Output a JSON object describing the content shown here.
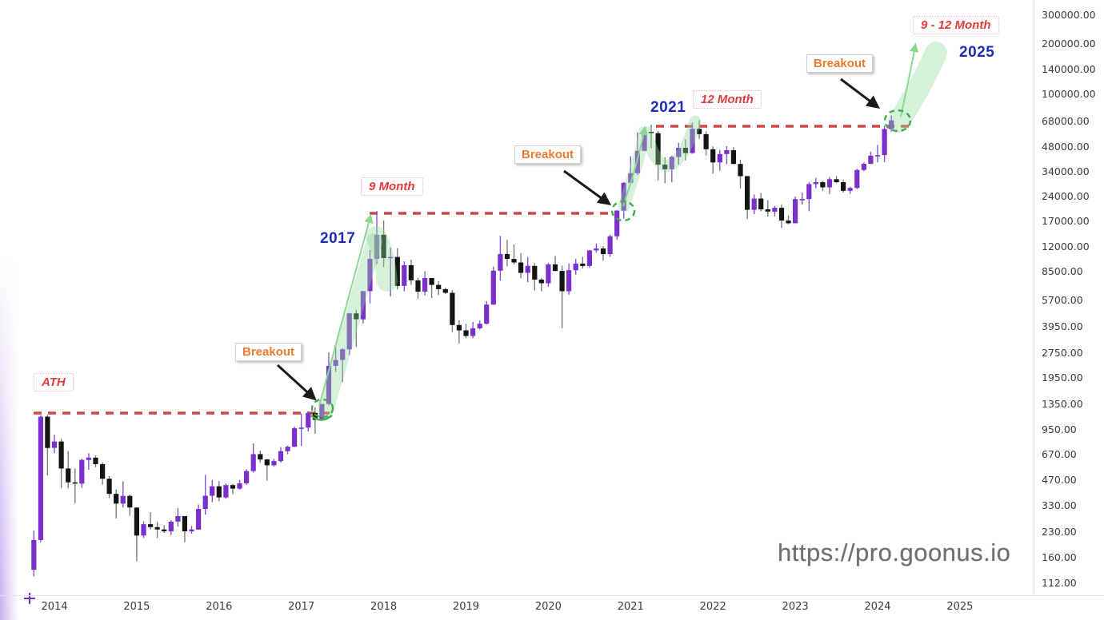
{
  "chart": {
    "watermark": "https://pro.goonus.io",
    "labels": {
      "ath": "ATH",
      "breakout_2017": "Breakout",
      "cycle_2017_duration": "9 Month",
      "year_2017": "2017",
      "breakout_2020": "Breakout",
      "cycle_2021_duration": "12 Month",
      "year_2021": "2021",
      "breakout_2024": "Breakout",
      "cycle_2025_duration": "9 - 12 Month",
      "year_2025": "2025"
    }
  },
  "x_axis": {
    "labels": [
      "2014",
      "2015",
      "2016",
      "2017",
      "2018",
      "2019",
      "2020",
      "2021",
      "2022",
      "2023",
      "2024",
      "2025"
    ]
  },
  "y_axis": {
    "labels": [
      "300000.00",
      "200000.00",
      "140000.00",
      "100000.00",
      "68000.00",
      "48000.00",
      "34000.00",
      "24000.00",
      "17000.00",
      "12000.00",
      "8500.00",
      "5700.00",
      "3950.00",
      "2750.00",
      "1950.00",
      "1350.00",
      "950.00",
      "670.00",
      "470.00",
      "330.00",
      "230.00",
      "160.00",
      "112.00"
    ]
  },
  "colors": {
    "up": "#7b2fcb",
    "down": "#141414",
    "up_wick": "#8a55d2",
    "down_wick": "#7d7d7d",
    "red_annotation": "#cf4646",
    "orange_label": "#ed7a2f",
    "blue_year": "#1f2cba",
    "green_circle": "#3fae4f",
    "green_arrow": "#8ad792",
    "green_band": "rgba(144,218,152,0.38)",
    "axis_text": "#3b3b3b",
    "watermark_gray": "#6f6f6f"
  },
  "chart_data": {
    "type": "candlestick",
    "scale": "logarithmic",
    "x_unit": "month",
    "y_range": [
      112,
      300000
    ],
    "x_range": [
      "2013-10",
      "2025-12"
    ],
    "resistance_lines": [
      {
        "price_level": 1150,
        "span": [
          "2013-11",
          "2017-04"
        ]
      },
      {
        "price_level": 19600,
        "span": [
          "2017-12",
          "2020-12"
        ]
      },
      {
        "price_level": 68500,
        "span": [
          "2021-04",
          "2024-03"
        ]
      }
    ],
    "breakout_markers": [
      "2017-04",
      "2020-12",
      "2024-03"
    ],
    "projection_arrows": [
      {
        "start": "2024-03",
        "approx_target_price": 200000,
        "label": "9 - 12 Month",
        "target_year": "2025"
      }
    ],
    "candles": [
      [
        "2013-10",
        135,
        233,
        123,
        204
      ],
      [
        "2013-11",
        204,
        1150,
        198,
        1130
      ],
      [
        "2013-12",
        1130,
        1160,
        500,
        732
      ],
      [
        "2014-01",
        732,
        880,
        680,
        800
      ],
      [
        "2014-02",
        800,
        830,
        420,
        550
      ],
      [
        "2014-03",
        550,
        700,
        420,
        454
      ],
      [
        "2014-04",
        454,
        550,
        340,
        446
      ],
      [
        "2014-05",
        446,
        630,
        420,
        620
      ],
      [
        "2014-06",
        620,
        680,
        540,
        640
      ],
      [
        "2014-07",
        640,
        660,
        560,
        585
      ],
      [
        "2014-08",
        585,
        600,
        440,
        478
      ],
      [
        "2014-09",
        478,
        495,
        365,
        387
      ],
      [
        "2014-10",
        387,
        412,
        275,
        338
      ],
      [
        "2014-11",
        338,
        460,
        320,
        376
      ],
      [
        "2014-12",
        376,
        384,
        285,
        320
      ],
      [
        "2015-01",
        320,
        321,
        152,
        217
      ],
      [
        "2015-02",
        217,
        265,
        210,
        254
      ],
      [
        "2015-03",
        254,
        300,
        236,
        244
      ],
      [
        "2015-04",
        244,
        262,
        210,
        236
      ],
      [
        "2015-05",
        236,
        250,
        225,
        230
      ],
      [
        "2015-06",
        230,
        268,
        219,
        263
      ],
      [
        "2015-07",
        263,
        318,
        246,
        284
      ],
      [
        "2015-08",
        284,
        285,
        198,
        230
      ],
      [
        "2015-09",
        230,
        248,
        223,
        236
      ],
      [
        "2015-10",
        236,
        334,
        235,
        314
      ],
      [
        "2015-11",
        314,
        504,
        290,
        377
      ],
      [
        "2015-12",
        377,
        469,
        345,
        430
      ],
      [
        "2016-01",
        430,
        463,
        350,
        368
      ],
      [
        "2016-02",
        368,
        447,
        362,
        437
      ],
      [
        "2016-03",
        437,
        444,
        385,
        416
      ],
      [
        "2016-04",
        416,
        470,
        410,
        448
      ],
      [
        "2016-05",
        448,
        545,
        438,
        531
      ],
      [
        "2016-06",
        531,
        780,
        520,
        672
      ],
      [
        "2016-07",
        672,
        705,
        600,
        624
      ],
      [
        "2016-08",
        624,
        630,
        465,
        575
      ],
      [
        "2016-09",
        575,
        629,
        565,
        610
      ],
      [
        "2016-10",
        610,
        740,
        598,
        700
      ],
      [
        "2016-11",
        700,
        755,
        670,
        745
      ],
      [
        "2016-12",
        745,
        982,
        740,
        963
      ],
      [
        "2017-01",
        963,
        1180,
        750,
        970
      ],
      [
        "2017-02",
        970,
        1220,
        920,
        1190
      ],
      [
        "2017-03",
        1190,
        1290,
        890,
        1080
      ],
      [
        "2017-04",
        1080,
        1347,
        1070,
        1347
      ],
      [
        "2017-05",
        1347,
        2760,
        1320,
        2286
      ],
      [
        "2017-06",
        2286,
        2980,
        2100,
        2480
      ],
      [
        "2017-07",
        2480,
        2920,
        1830,
        2875
      ],
      [
        "2017-08",
        2875,
        4765,
        2650,
        4735
      ],
      [
        "2017-09",
        4735,
        4980,
        2970,
        4360
      ],
      [
        "2017-10",
        4360,
        6470,
        4110,
        6450
      ],
      [
        "2017-11",
        6450,
        11400,
        5440,
        10100
      ],
      [
        "2017-12",
        10100,
        19600,
        9400,
        14100
      ],
      [
        "2018-01",
        14100,
        17200,
        9000,
        10200
      ],
      [
        "2018-02",
        10200,
        11780,
        6000,
        10360
      ],
      [
        "2018-03",
        10360,
        11700,
        6600,
        6930
      ],
      [
        "2018-04",
        6930,
        9760,
        6430,
        9240
      ],
      [
        "2018-05",
        9240,
        9990,
        7040,
        7490
      ],
      [
        "2018-06",
        7490,
        7780,
        5780,
        6400
      ],
      [
        "2018-07",
        6400,
        8500,
        6070,
        7730
      ],
      [
        "2018-08",
        7730,
        7760,
        5860,
        7030
      ],
      [
        "2018-09",
        7030,
        7410,
        6100,
        6630
      ],
      [
        "2018-10",
        6630,
        6760,
        6190,
        6300
      ],
      [
        "2018-11",
        6300,
        6540,
        3650,
        4030
      ],
      [
        "2018-12",
        4030,
        4300,
        3120,
        3740
      ],
      [
        "2019-01",
        3740,
        4100,
        3350,
        3460
      ],
      [
        "2019-02",
        3460,
        4200,
        3350,
        3850
      ],
      [
        "2019-03",
        3850,
        4290,
        3790,
        4100
      ],
      [
        "2019-04",
        4100,
        5620,
        4050,
        5350
      ],
      [
        "2019-05",
        5350,
        9070,
        5330,
        8560
      ],
      [
        "2019-06",
        8560,
        13880,
        7460,
        10800
      ],
      [
        "2019-07",
        10800,
        13130,
        9080,
        10080
      ],
      [
        "2019-08",
        10080,
        12320,
        9350,
        9600
      ],
      [
        "2019-09",
        9600,
        10940,
        7700,
        8310
      ],
      [
        "2019-10",
        8310,
        10350,
        7300,
        9150
      ],
      [
        "2019-11",
        9150,
        9500,
        6520,
        7570
      ],
      [
        "2019-12",
        7570,
        7740,
        6430,
        7190
      ],
      [
        "2020-01",
        7190,
        9570,
        6850,
        9350
      ],
      [
        "2020-02",
        9350,
        10500,
        8520,
        8530
      ],
      [
        "2020-03",
        8530,
        9180,
        3850,
        6440
      ],
      [
        "2020-04",
        6440,
        9460,
        6140,
        8620
      ],
      [
        "2020-05",
        8620,
        10070,
        8100,
        9450
      ],
      [
        "2020-06",
        9450,
        10380,
        8830,
        9140
      ],
      [
        "2020-07",
        9140,
        11450,
        8900,
        11350
      ],
      [
        "2020-08",
        11350,
        12480,
        11000,
        11650
      ],
      [
        "2020-09",
        11650,
        12050,
        9820,
        10780
      ],
      [
        "2020-10",
        10780,
        14100,
        10380,
        13800
      ],
      [
        "2020-11",
        13800,
        19860,
        13200,
        19700
      ],
      [
        "2020-12",
        19700,
        29300,
        17600,
        29000
      ],
      [
        "2021-01",
        29000,
        41950,
        28130,
        33100
      ],
      [
        "2021-02",
        33100,
        58350,
        32300,
        45160
      ],
      [
        "2021-03",
        45160,
        61780,
        44950,
        58780
      ],
      [
        "2021-04",
        58780,
        64800,
        46930,
        57720
      ],
      [
        "2021-05",
        57720,
        59500,
        30000,
        37300
      ],
      [
        "2021-06",
        37300,
        41330,
        28800,
        35000
      ],
      [
        "2021-07",
        35000,
        42230,
        29300,
        41460
      ],
      [
        "2021-08",
        41460,
        50500,
        37330,
        47100
      ],
      [
        "2021-09",
        47100,
        52920,
        39600,
        43790
      ],
      [
        "2021-10",
        43790,
        66960,
        43280,
        61300
      ],
      [
        "2021-11",
        61300,
        69000,
        53260,
        56950
      ],
      [
        "2021-12",
        56950,
        59100,
        42330,
        46200
      ],
      [
        "2022-01",
        46200,
        47990,
        32930,
        38480
      ],
      [
        "2022-02",
        38480,
        45820,
        34320,
        43190
      ],
      [
        "2022-03",
        43190,
        48190,
        37550,
        45540
      ],
      [
        "2022-04",
        45540,
        47450,
        37580,
        37650
      ],
      [
        "2022-05",
        37650,
        40000,
        26700,
        31790
      ],
      [
        "2022-06",
        31790,
        31970,
        17600,
        19925
      ],
      [
        "2022-07",
        19925,
        24660,
        18780,
        23290
      ],
      [
        "2022-08",
        23290,
        25200,
        19520,
        20050
      ],
      [
        "2022-09",
        20050,
        22800,
        18130,
        19430
      ],
      [
        "2022-10",
        19430,
        21080,
        18190,
        20490
      ],
      [
        "2022-11",
        20490,
        21480,
        15480,
        17170
      ],
      [
        "2022-12",
        17170,
        18390,
        16260,
        16540
      ],
      [
        "2023-01",
        16540,
        23960,
        16490,
        23130
      ],
      [
        "2023-02",
        23130,
        25250,
        21440,
        23140
      ],
      [
        "2023-03",
        23140,
        29180,
        19550,
        28470
      ],
      [
        "2023-04",
        28470,
        31050,
        26940,
        29250
      ],
      [
        "2023-05",
        29250,
        29820,
        25800,
        27220
      ],
      [
        "2023-06",
        27220,
        31400,
        24800,
        30470
      ],
      [
        "2023-07",
        30470,
        31800,
        28860,
        29230
      ],
      [
        "2023-08",
        29230,
        30180,
        25350,
        25930
      ],
      [
        "2023-09",
        25930,
        27480,
        24900,
        26960
      ],
      [
        "2023-10",
        26960,
        35150,
        26550,
        34650
      ],
      [
        "2023-11",
        34650,
        38410,
        34100,
        37710
      ],
      [
        "2023-12",
        37710,
        44700,
        37610,
        42270
      ],
      [
        "2024-01",
        42270,
        48970,
        38500,
        42580
      ],
      [
        "2024-02",
        42580,
        63930,
        38530,
        61130
      ],
      [
        "2024-03",
        61130,
        73800,
        59000,
        69000
      ]
    ]
  }
}
